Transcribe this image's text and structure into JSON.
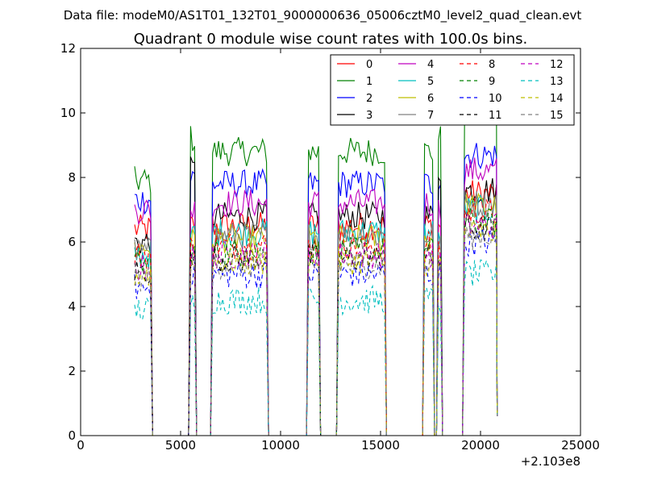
{
  "figure": {
    "suptitle": "Data file: modeM0/AS1T01_132T01_9000000636_05006cztM0_level2_quad_clean.evt"
  },
  "chart_data": {
    "type": "line",
    "title": "Quadrant 0 module wise count rates with 100.0s bins.",
    "xlabel": "",
    "ylabel": "",
    "x_offset_label": "+2.103e8",
    "xlim": [
      0,
      25000
    ],
    "ylim": [
      0,
      12
    ],
    "xticks": [
      0,
      5000,
      10000,
      15000,
      20000,
      25000
    ],
    "yticks": [
      0,
      2,
      4,
      6,
      8,
      10,
      12
    ],
    "xtick_labels": [
      "0",
      "5000",
      "10000",
      "15000",
      "20000",
      "25000"
    ],
    "ytick_labels": [
      "0",
      "2",
      "4",
      "6",
      "8",
      "10",
      "12"
    ],
    "grid": false,
    "legend_position": "top-right",
    "legend_columns": 4,
    "segments": [
      {
        "x_start": 2700,
        "x_end": 3500,
        "level": "medium"
      },
      {
        "x_start": 5500,
        "x_end": 5700,
        "level": "spike"
      },
      {
        "x_start": 6600,
        "x_end": 9300,
        "level": "high"
      },
      {
        "x_start": 11400,
        "x_end": 11900,
        "level": "high"
      },
      {
        "x_start": 12900,
        "x_end": 15200,
        "level": "high"
      },
      {
        "x_start": 17200,
        "x_end": 17600,
        "level": "high"
      },
      {
        "x_start": 17900,
        "x_end": 18000,
        "level": "spike"
      },
      {
        "x_start": 19200,
        "x_end": 20800,
        "level": "very-high"
      }
    ],
    "series": [
      {
        "name": "0",
        "color": "#ff0000",
        "dash": "solid",
        "levels": {
          "medium": 6.4,
          "high": 6.5,
          "very-high": 7.5,
          "spike": 6.5
        }
      },
      {
        "name": "1",
        "color": "#008000",
        "dash": "solid",
        "levels": {
          "medium": 7.9,
          "high": 8.8,
          "very-high": 10.0,
          "spike": 9.2
        }
      },
      {
        "name": "2",
        "color": "#0000ff",
        "dash": "solid",
        "levels": {
          "medium": 7.3,
          "high": 7.8,
          "very-high": 8.7,
          "spike": 8.0
        }
      },
      {
        "name": "3",
        "color": "#000000",
        "dash": "solid",
        "levels": {
          "medium": 6.0,
          "high": 6.8,
          "very-high": 7.6,
          "spike": 8.2
        }
      },
      {
        "name": "4",
        "color": "#bf00bf",
        "dash": "solid",
        "levels": {
          "medium": 7.0,
          "high": 7.2,
          "very-high": 8.2,
          "spike": 7.0
        }
      },
      {
        "name": "5",
        "color": "#00bfbf",
        "dash": "solid",
        "levels": {
          "medium": 5.6,
          "high": 6.3,
          "very-high": 7.0,
          "spike": 6.2
        }
      },
      {
        "name": "6",
        "color": "#bfbf00",
        "dash": "solid",
        "levels": {
          "medium": 5.8,
          "high": 6.1,
          "very-high": 7.1,
          "spike": 6.0
        }
      },
      {
        "name": "7",
        "color": "#808080",
        "dash": "solid",
        "levels": {
          "medium": 5.7,
          "high": 6.2,
          "very-high": 7.2,
          "spike": 6.1
        }
      },
      {
        "name": "8",
        "color": "#ff0000",
        "dash": "dashed",
        "levels": {
          "medium": 5.6,
          "high": 5.9,
          "very-high": 6.9,
          "spike": 5.8
        }
      },
      {
        "name": "9",
        "color": "#008000",
        "dash": "dashed",
        "levels": {
          "medium": 5.3,
          "high": 5.7,
          "very-high": 6.6,
          "spike": 5.6
        }
      },
      {
        "name": "10",
        "color": "#0000ff",
        "dash": "dashed",
        "levels": {
          "medium": 4.6,
          "high": 5.0,
          "very-high": 6.0,
          "spike": 5.0
        }
      },
      {
        "name": "11",
        "color": "#000000",
        "dash": "dashed",
        "levels": {
          "medium": 5.1,
          "high": 5.5,
          "very-high": 6.4,
          "spike": 5.4
        }
      },
      {
        "name": "12",
        "color": "#bf00bf",
        "dash": "dashed",
        "levels": {
          "medium": 5.2,
          "high": 5.6,
          "very-high": 6.5,
          "spike": 5.5
        }
      },
      {
        "name": "13",
        "color": "#00bfbf",
        "dash": "dashed",
        "levels": {
          "medium": 3.9,
          "high": 4.2,
          "very-high": 5.0,
          "spike": 4.1
        }
      },
      {
        "name": "14",
        "color": "#bfbf00",
        "dash": "dashed",
        "levels": {
          "medium": 5.0,
          "high": 5.4,
          "very-high": 6.3,
          "spike": 5.3
        }
      },
      {
        "name": "15",
        "color": "#808080",
        "dash": "dashed",
        "levels": {
          "medium": 4.9,
          "high": 5.3,
          "very-high": 6.2,
          "spike": 5.2
        }
      }
    ]
  }
}
